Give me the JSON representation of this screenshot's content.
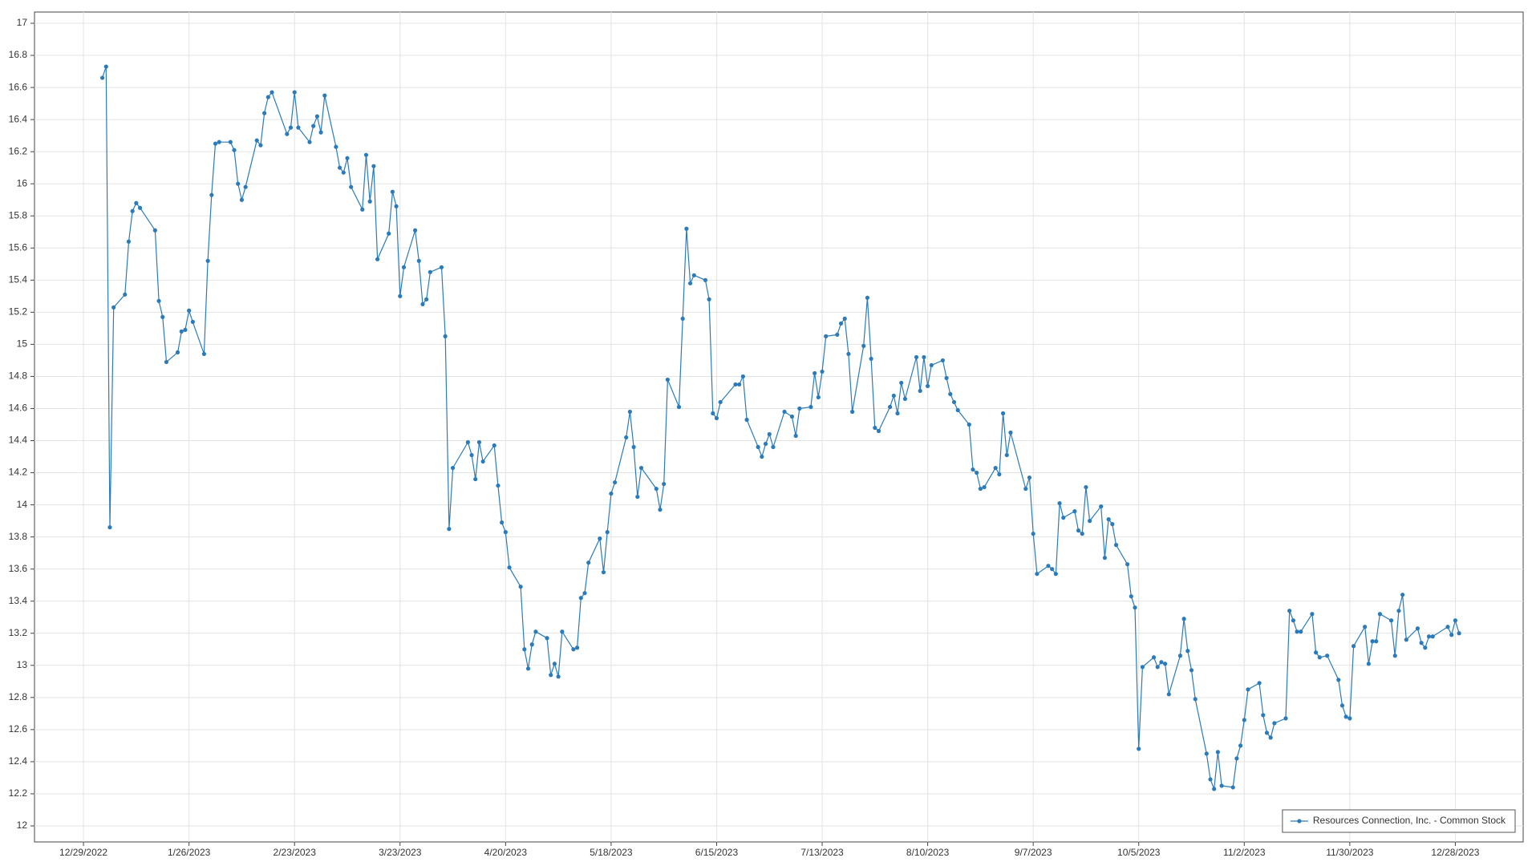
{
  "chart_data": {
    "type": "line",
    "x": [
      "1/3/2023",
      "1/4/2023",
      "1/5/2023",
      "1/6/2023",
      "1/9/2023",
      "1/10/2023",
      "1/11/2023",
      "1/12/2023",
      "1/13/2023",
      "1/17/2023",
      "1/18/2023",
      "1/19/2023",
      "1/20/2023",
      "1/23/2023",
      "1/24/2023",
      "1/25/2023",
      "1/26/2023",
      "1/27/2023",
      "1/30/2023",
      "1/31/2023",
      "2/1/2023",
      "2/2/2023",
      "2/3/2023",
      "2/6/2023",
      "2/7/2023",
      "2/8/2023",
      "2/9/2023",
      "2/10/2023",
      "2/13/2023",
      "2/14/2023",
      "2/15/2023",
      "2/16/2023",
      "2/17/2023",
      "2/21/2023",
      "2/22/2023",
      "2/23/2023",
      "2/24/2023",
      "2/27/2023",
      "2/28/2023",
      "3/1/2023",
      "3/2/2023",
      "3/3/2023",
      "3/6/2023",
      "3/7/2023",
      "3/8/2023",
      "3/9/2023",
      "3/10/2023",
      "3/13/2023",
      "3/14/2023",
      "3/15/2023",
      "3/16/2023",
      "3/17/2023",
      "3/20/2023",
      "3/21/2023",
      "3/22/2023",
      "3/23/2023",
      "3/24/2023",
      "3/27/2023",
      "3/28/2023",
      "3/29/2023",
      "3/30/2023",
      "3/31/2023",
      "4/3/2023",
      "4/4/2023",
      "4/5/2023",
      "4/6/2023",
      "4/10/2023",
      "4/11/2023",
      "4/12/2023",
      "4/13/2023",
      "4/14/2023",
      "4/17/2023",
      "4/18/2023",
      "4/19/2023",
      "4/20/2023",
      "4/21/2023",
      "4/24/2023",
      "4/25/2023",
      "4/26/2023",
      "4/27/2023",
      "4/28/2023",
      "5/1/2023",
      "5/2/2023",
      "5/3/2023",
      "5/4/2023",
      "5/5/2023",
      "5/8/2023",
      "5/9/2023",
      "5/10/2023",
      "5/11/2023",
      "5/12/2023",
      "5/15/2023",
      "5/16/2023",
      "5/17/2023",
      "5/18/2023",
      "5/19/2023",
      "5/22/2023",
      "5/23/2023",
      "5/24/2023",
      "5/25/2023",
      "5/26/2023",
      "5/30/2023",
      "5/31/2023",
      "6/1/2023",
      "6/2/2023",
      "6/5/2023",
      "6/6/2023",
      "6/7/2023",
      "6/8/2023",
      "6/9/2023",
      "6/12/2023",
      "6/13/2023",
      "6/14/2023",
      "6/15/2023",
      "6/16/2023",
      "6/20/2023",
      "6/21/2023",
      "6/22/2023",
      "6/23/2023",
      "6/26/2023",
      "6/27/2023",
      "6/28/2023",
      "6/29/2023",
      "6/30/2023",
      "7/3/2023",
      "7/5/2023",
      "7/6/2023",
      "7/7/2023",
      "7/10/2023",
      "7/11/2023",
      "7/12/2023",
      "7/13/2023",
      "7/14/2023",
      "7/17/2023",
      "7/18/2023",
      "7/19/2023",
      "7/20/2023",
      "7/21/2023",
      "7/24/2023",
      "7/25/2023",
      "7/26/2023",
      "7/27/2023",
      "7/28/2023",
      "7/31/2023",
      "8/1/2023",
      "8/2/2023",
      "8/3/2023",
      "8/4/2023",
      "8/7/2023",
      "8/8/2023",
      "8/9/2023",
      "8/10/2023",
      "8/11/2023",
      "8/14/2023",
      "8/15/2023",
      "8/16/2023",
      "8/17/2023",
      "8/18/2023",
      "8/21/2023",
      "8/22/2023",
      "8/23/2023",
      "8/24/2023",
      "8/25/2023",
      "8/28/2023",
      "8/29/2023",
      "8/30/2023",
      "8/31/2023",
      "9/1/2023",
      "9/5/2023",
      "9/6/2023",
      "9/7/2023",
      "9/8/2023",
      "9/11/2023",
      "9/12/2023",
      "9/13/2023",
      "9/14/2023",
      "9/15/2023",
      "9/18/2023",
      "9/19/2023",
      "9/20/2023",
      "9/21/2023",
      "9/22/2023",
      "9/25/2023",
      "9/26/2023",
      "9/27/2023",
      "9/28/2023",
      "9/29/2023",
      "10/2/2023",
      "10/3/2023",
      "10/4/2023",
      "10/5/2023",
      "10/6/2023",
      "10/9/2023",
      "10/10/2023",
      "10/11/2023",
      "10/12/2023",
      "10/13/2023",
      "10/16/2023",
      "10/17/2023",
      "10/18/2023",
      "10/19/2023",
      "10/20/2023",
      "10/23/2023",
      "10/24/2023",
      "10/25/2023",
      "10/26/2023",
      "10/27/2023",
      "10/30/2023",
      "10/31/2023",
      "11/1/2023",
      "11/2/2023",
      "11/3/2023",
      "11/6/2023",
      "11/7/2023",
      "11/8/2023",
      "11/9/2023",
      "11/10/2023",
      "11/13/2023",
      "11/14/2023",
      "11/15/2023",
      "11/16/2023",
      "11/17/2023",
      "11/20/2023",
      "11/21/2023",
      "11/22/2023",
      "11/24/2023",
      "11/27/2023",
      "11/28/2023",
      "11/29/2023",
      "11/30/2023",
      "12/1/2023",
      "12/4/2023",
      "12/5/2023",
      "12/6/2023",
      "12/7/2023",
      "12/8/2023",
      "12/11/2023",
      "12/12/2023",
      "12/13/2023",
      "12/14/2023",
      "12/15/2023",
      "12/18/2023",
      "12/19/2023",
      "12/20/2023",
      "12/21/2023",
      "12/22/2023",
      "12/26/2023",
      "12/27/2023",
      "12/28/2023",
      "12/29/2023"
    ],
    "series": [
      {
        "name": "Resources Connection, Inc. - Common Stock",
        "color": "#2b7bba",
        "values": [
          16.66,
          16.73,
          13.86,
          15.23,
          15.31,
          15.64,
          15.83,
          15.88,
          15.85,
          15.71,
          15.27,
          15.17,
          14.89,
          14.95,
          15.08,
          15.09,
          15.21,
          15.14,
          14.94,
          15.52,
          15.93,
          16.25,
          16.26,
          16.26,
          16.21,
          16.0,
          15.9,
          15.98,
          16.27,
          16.24,
          16.44,
          16.54,
          16.57,
          16.31,
          16.35,
          16.57,
          16.35,
          16.26,
          16.36,
          16.42,
          16.32,
          16.55,
          16.23,
          16.1,
          16.07,
          16.16,
          15.98,
          15.84,
          16.18,
          15.89,
          16.11,
          15.53,
          15.69,
          15.95,
          15.86,
          15.3,
          15.48,
          15.71,
          15.52,
          15.25,
          15.28,
          15.45,
          15.48,
          15.05,
          13.85,
          14.23,
          14.39,
          14.31,
          14.16,
          14.39,
          14.27,
          14.37,
          14.12,
          13.89,
          13.83,
          13.61,
          13.49,
          13.1,
          12.98,
          13.13,
          13.21,
          13.17,
          12.94,
          13.01,
          12.93,
          13.21,
          13.1,
          13.11,
          13.42,
          13.45,
          13.64,
          13.79,
          13.58,
          13.83,
          14.07,
          14.14,
          14.42,
          14.58,
          14.36,
          14.05,
          14.23,
          14.1,
          13.97,
          14.13,
          14.78,
          14.61,
          15.16,
          15.72,
          15.38,
          15.43,
          15.4,
          15.28,
          14.57,
          14.54,
          14.64,
          14.75,
          14.75,
          14.8,
          14.53,
          14.36,
          14.3,
          14.38,
          14.44,
          14.36,
          14.58,
          14.55,
          14.43,
          14.6,
          14.61,
          14.82,
          14.67,
          14.83,
          15.05,
          15.06,
          15.13,
          15.16,
          14.94,
          14.58,
          14.99,
          15.29,
          14.91,
          14.48,
          14.46,
          14.61,
          14.68,
          14.57,
          14.76,
          14.66,
          14.92,
          14.71,
          14.92,
          14.74,
          14.87,
          14.9,
          14.79,
          14.69,
          14.64,
          14.59,
          14.5,
          14.22,
          14.2,
          14.1,
          14.11,
          14.23,
          14.19,
          14.57,
          14.31,
          14.45,
          14.1,
          14.17,
          13.82,
          13.57,
          13.62,
          13.6,
          13.57,
          14.01,
          13.92,
          13.96,
          13.84,
          13.82,
          14.11,
          13.9,
          13.99,
          13.67,
          13.91,
          13.88,
          13.75,
          13.63,
          13.43,
          13.36,
          12.48,
          12.99,
          13.05,
          12.99,
          13.02,
          13.01,
          12.82,
          13.06,
          13.29,
          13.09,
          12.97,
          12.79,
          12.45,
          12.29,
          12.23,
          12.46,
          12.25,
          12.24,
          12.42,
          12.5,
          12.66,
          12.85,
          12.89,
          12.69,
          12.58,
          12.55,
          12.64,
          12.67,
          13.34,
          13.28,
          13.21,
          13.21,
          13.32,
          13.08,
          13.05,
          13.06,
          12.91,
          12.75,
          12.68,
          12.67,
          13.12,
          13.24,
          13.01,
          13.15,
          13.15,
          13.32,
          13.28,
          13.06,
          13.34,
          13.44,
          13.16,
          13.23,
          13.14,
          13.11,
          13.18,
          13.18,
          13.24,
          13.19,
          13.28,
          13.2
        ]
      }
    ],
    "xlim": [
      "12/16/2022",
      "1/15/2024"
    ],
    "xticks": [
      "12/29/2022",
      "1/26/2023",
      "2/23/2023",
      "3/23/2023",
      "4/20/2023",
      "5/18/2023",
      "6/15/2023",
      "7/13/2023",
      "8/10/2023",
      "9/7/2023",
      "10/5/2023",
      "11/2/2023",
      "11/30/2023",
      "12/28/2023"
    ],
    "ylim": [
      11.9,
      17.07
    ],
    "yticks": [
      12,
      12.2,
      12.4,
      12.6,
      12.8,
      13,
      13.2,
      13.4,
      13.6,
      13.8,
      14,
      14.2,
      14.4,
      14.6,
      14.8,
      15,
      15.2,
      15.4,
      15.6,
      15.8,
      16,
      16.2,
      16.4,
      16.6,
      16.8,
      17
    ],
    "grid": true,
    "legend": "bottom-right",
    "markers": true
  }
}
